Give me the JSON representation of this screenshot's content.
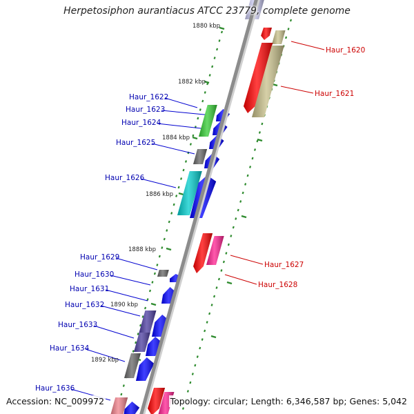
{
  "title": "Herpetosiphon aurantiacus ATCC 23779, complete genome",
  "footer": {
    "accession": "Accession: NC_009972",
    "topology": "Topology: circular; Length: 6,346,587 bp; Genes: 5,042"
  },
  "colors": {
    "backbone": "#8c8c8c",
    "tick": "#2e8b2e",
    "label_left": "#0000b0",
    "label_right": "#cc0000"
  },
  "kbp_labels": [
    "1880 kbp",
    "1882 kbp",
    "1884 kbp",
    "1886 kbp",
    "1888 kbp",
    "1890 kbp",
    "1892 kbp"
  ],
  "left_genes": [
    {
      "id": "g1622",
      "label": "Haur_1622"
    },
    {
      "id": "g1623",
      "label": "Haur_1623"
    },
    {
      "id": "g1624",
      "label": "Haur_1624"
    },
    {
      "id": "g1625",
      "label": "Haur_1625"
    },
    {
      "id": "g1626",
      "label": "Haur_1626"
    },
    {
      "id": "g1629",
      "label": "Haur_1629"
    },
    {
      "id": "g1630",
      "label": "Haur_1630"
    },
    {
      "id": "g1631",
      "label": "Haur_1631"
    },
    {
      "id": "g1632",
      "label": "Haur_1632"
    },
    {
      "id": "g1633",
      "label": "Haur_1633"
    },
    {
      "id": "g1634",
      "label": "Haur_1634"
    },
    {
      "id": "g1636",
      "label": "Haur_1636"
    }
  ],
  "right_genes": [
    {
      "id": "g1620",
      "label": "Haur_1620"
    },
    {
      "id": "g1621",
      "label": "Haur_1621"
    },
    {
      "id": "g1627",
      "label": "Haur_1627"
    },
    {
      "id": "g1628",
      "label": "Haur_1628"
    }
  ]
}
